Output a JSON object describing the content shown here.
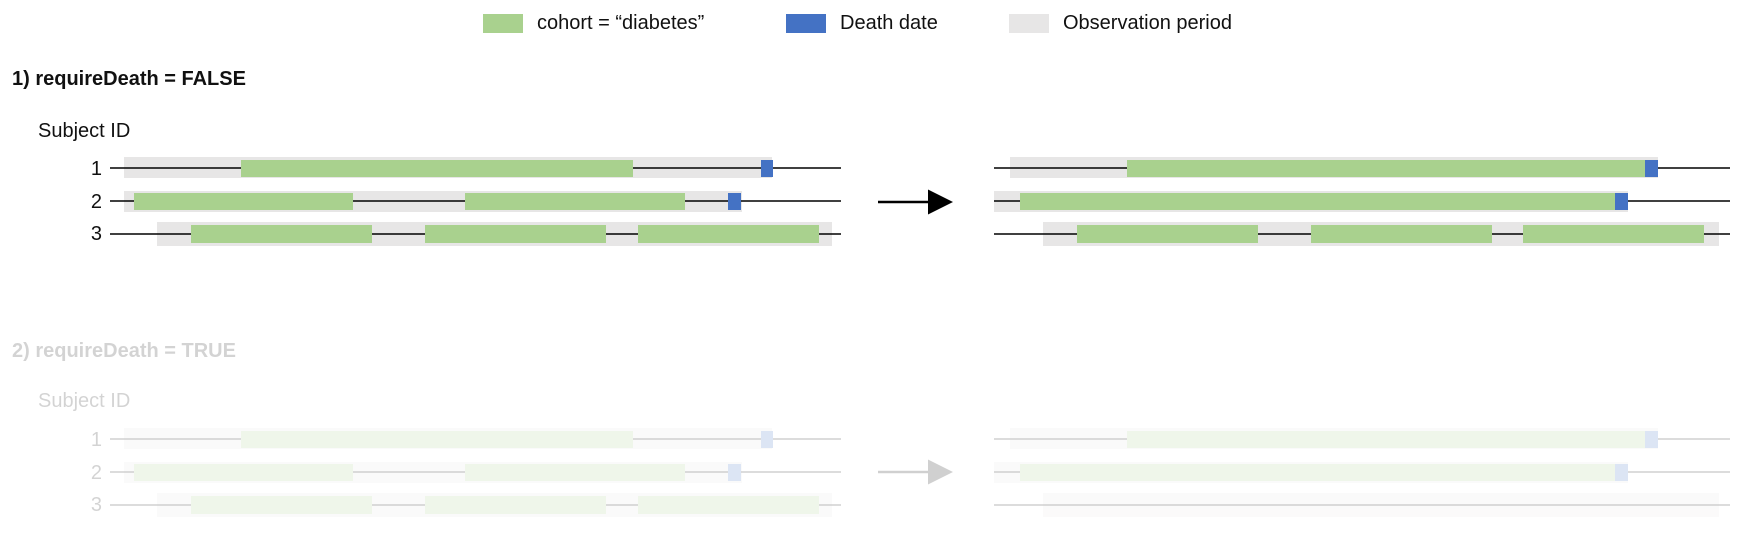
{
  "legend": [
    {
      "label": "cohort = “diabetes”",
      "color": "#a9d18e",
      "icon": "green-swatch"
    },
    {
      "label": "Death date",
      "color": "#4472c4",
      "icon": "blue-swatch"
    },
    {
      "label": "Observation period",
      "color": "#e7e6e6",
      "icon": "gray-swatch"
    }
  ],
  "colors": {
    "cohort": "#a9d18e",
    "death": "#4472c4",
    "observation": "#e7e6e6",
    "line": "#000000"
  },
  "sections": [
    {
      "title": "1) requireDeath = FALSE",
      "subject_header": "Subject ID",
      "faded": false,
      "rows": [
        "1",
        "2",
        "3"
      ]
    },
    {
      "title": "2) requireDeath = TRUE",
      "subject_header": "Subject ID",
      "faded": true,
      "rows": [
        "1",
        "2",
        "3"
      ]
    }
  ]
}
